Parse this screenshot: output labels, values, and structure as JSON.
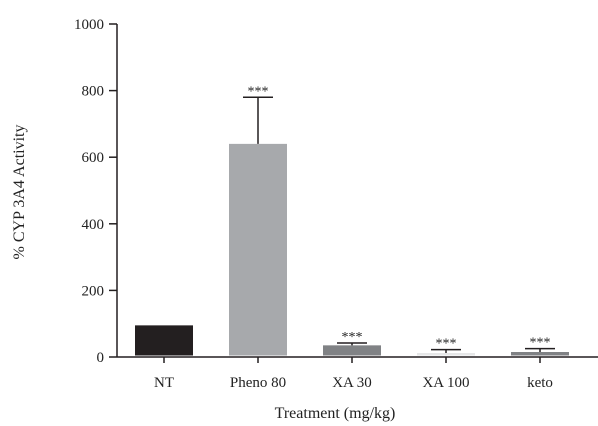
{
  "chart_data": {
    "type": "bar",
    "title": "",
    "xlabel": "Treatment (mg/kg)",
    "ylabel": "% CYP 3A4 Activity",
    "ylim": [
      0,
      1000
    ],
    "yticks": [
      0,
      200,
      400,
      600,
      800,
      1000
    ],
    "grid": false,
    "legend": "none",
    "categories": [
      "NT",
      "Pheno 80",
      "XA 30",
      "XA 100",
      "keto"
    ],
    "values": [
      95,
      640,
      35,
      12,
      15
    ],
    "error_upper": [
      0,
      780,
      42,
      22,
      25
    ],
    "significance": [
      "",
      "***",
      "***",
      "***",
      "***"
    ],
    "bar_colors": [
      "#231f20",
      "#a7a9ac",
      "#808285",
      "#e6e7e8",
      "#808285"
    ],
    "axis_color": "#231f20"
  }
}
